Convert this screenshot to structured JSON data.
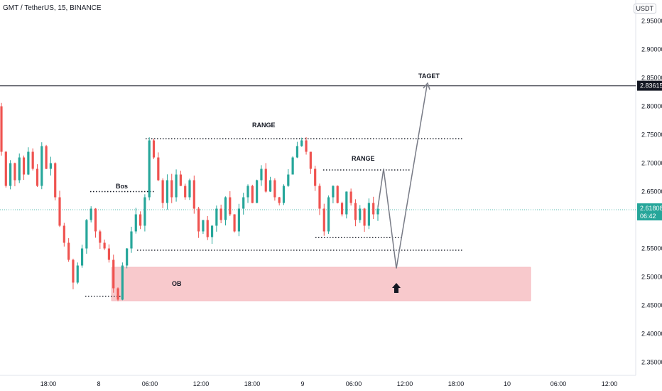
{
  "header": {
    "title": "GMT / TetherUS, 15, BINANCE",
    "unit": "USDT"
  },
  "colors": {
    "up": "#26a69a",
    "down": "#ef5350",
    "ob": "#f8c9cc",
    "line": "#787b86",
    "text": "#131722"
  },
  "chart_data": {
    "type": "candlestick",
    "ylim": [
      2.32,
      2.98
    ],
    "y_ticks": [
      "2.95000",
      "2.90000",
      "2.85000",
      "2.80000",
      "2.75000",
      "2.70000",
      "2.65000",
      "2.55000",
      "2.50000",
      "2.45000",
      "2.40000",
      "2.35000"
    ],
    "x_ticks": [
      "18:00",
      "8",
      "06:00",
      "12:00",
      "18:00",
      "9",
      "06:00",
      "12:00",
      "18:00",
      "10",
      "06:00",
      "12:00"
    ],
    "price_labels": {
      "target": {
        "value": 2.83615,
        "text": "2.83615"
      },
      "current": {
        "value": 2.61808,
        "text": "2.61808",
        "countdown": "06:42"
      }
    },
    "close_path": [
      2.72,
      2.66,
      2.7,
      2.67,
      2.71,
      2.68,
      2.72,
      2.69,
      2.66,
      2.73,
      2.69,
      2.7,
      2.64,
      2.59,
      2.56,
      2.53,
      2.49,
      2.52,
      2.55,
      2.6,
      2.62,
      2.58,
      2.56,
      2.55,
      2.53,
      2.48,
      2.46,
      2.52,
      2.55,
      2.58,
      2.61,
      2.59,
      2.64,
      2.74,
      2.71,
      2.67,
      2.63,
      2.67,
      2.64,
      2.68,
      2.66,
      2.64,
      2.67,
      2.62,
      2.58,
      2.6,
      2.57,
      2.59,
      2.62,
      2.6,
      2.64,
      2.61,
      2.58,
      2.62,
      2.64,
      2.66,
      2.63,
      2.67,
      2.69,
      2.65,
      2.67,
      2.64,
      2.63,
      2.66,
      2.68,
      2.71,
      2.73,
      2.74,
      2.72,
      2.69,
      2.66,
      2.62,
      2.58,
      2.64,
      2.66,
      2.63,
      2.61,
      2.65,
      2.63,
      2.6,
      2.62,
      2.59,
      2.63,
      2.61,
      2.62
    ],
    "annotations": {
      "range_top": {
        "label": "RANGE",
        "y": 2.743
      },
      "range_right": {
        "label": "RANGE",
        "y": 2.688
      },
      "bos": {
        "label": "Bos",
        "y": 2.65
      },
      "ob": {
        "label": "OB",
        "y_top": 2.517,
        "y_bottom": 2.458
      },
      "target": {
        "label": "TAGET",
        "y": 2.836
      },
      "range_bottom_y": 2.547,
      "right_low_y": 2.569,
      "start_low_y": 2.466,
      "projection": [
        2.622,
        2.69,
        2.515,
        2.836
      ]
    }
  }
}
